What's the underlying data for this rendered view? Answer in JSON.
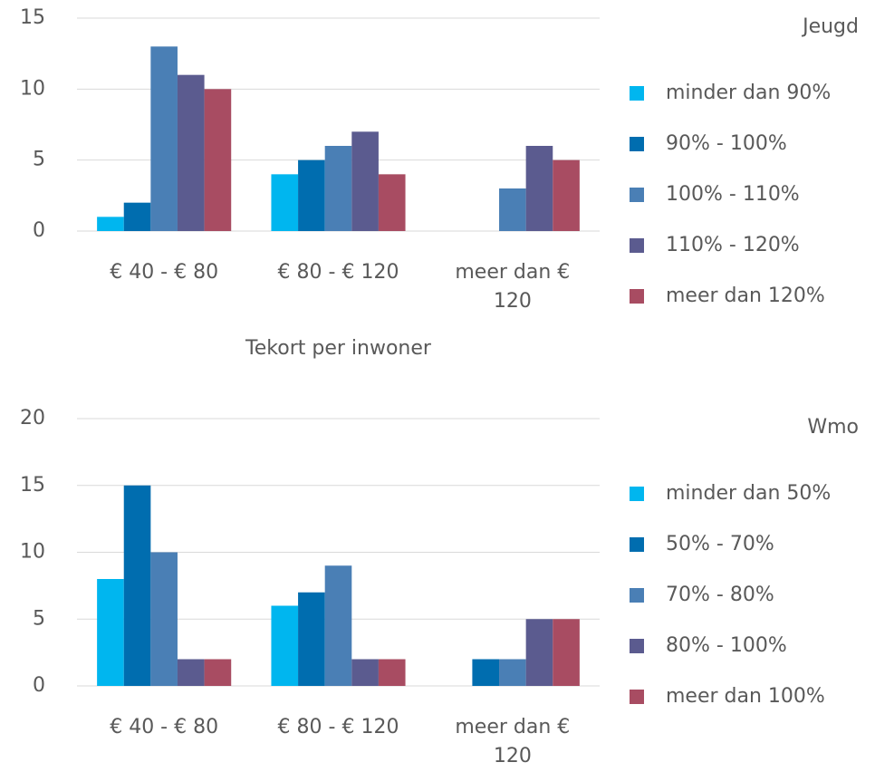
{
  "chart_data": [
    {
      "type": "bar",
      "legend_title": "Jeugd",
      "x_label": "Tekort per inwoner",
      "categories": [
        "€ 40 - € 80",
        "€ 80 - € 120",
        "meer dan € 120"
      ],
      "series": [
        {
          "name": "minder dan 90%",
          "color": "#00b6ef",
          "values": [
            1,
            4,
            0
          ]
        },
        {
          "name": "90% - 100%",
          "color": "#006daf",
          "values": [
            2,
            5,
            0
          ]
        },
        {
          "name": "100% - 110%",
          "color": "#4a7fb5",
          "values": [
            13,
            6,
            3
          ]
        },
        {
          "name": "110% - 120%",
          "color": "#5b5b8f",
          "values": [
            11,
            7,
            6
          ]
        },
        {
          "name": "meer dan 120%",
          "color": "#a84c62",
          "values": [
            10,
            4,
            5
          ]
        }
      ],
      "ylim": [
        0,
        15
      ],
      "yticks": [
        0,
        5,
        10,
        15
      ],
      "grid": true,
      "legend": "right"
    },
    {
      "type": "bar",
      "legend_title": "Wmo",
      "categories": [
        "€ 40 - € 80",
        "€ 80 - € 120",
        "meer dan € 120"
      ],
      "series": [
        {
          "name": "minder dan 50%",
          "color": "#00b6ef",
          "values": [
            8,
            6,
            0
          ]
        },
        {
          "name": "50% - 70%",
          "color": "#006daf",
          "values": [
            15,
            7,
            2
          ]
        },
        {
          "name": "70% - 80%",
          "color": "#4a7fb5",
          "values": [
            10,
            9,
            2
          ]
        },
        {
          "name": "80% - 100%",
          "color": "#5b5b8f",
          "values": [
            2,
            2,
            5
          ]
        },
        {
          "name": "meer dan 100%",
          "color": "#a84c62",
          "values": [
            2,
            2,
            5
          ]
        }
      ],
      "ylim": [
        0,
        20
      ],
      "yticks": [
        0,
        5,
        10,
        15,
        20
      ],
      "grid": true,
      "legend": "right"
    }
  ]
}
